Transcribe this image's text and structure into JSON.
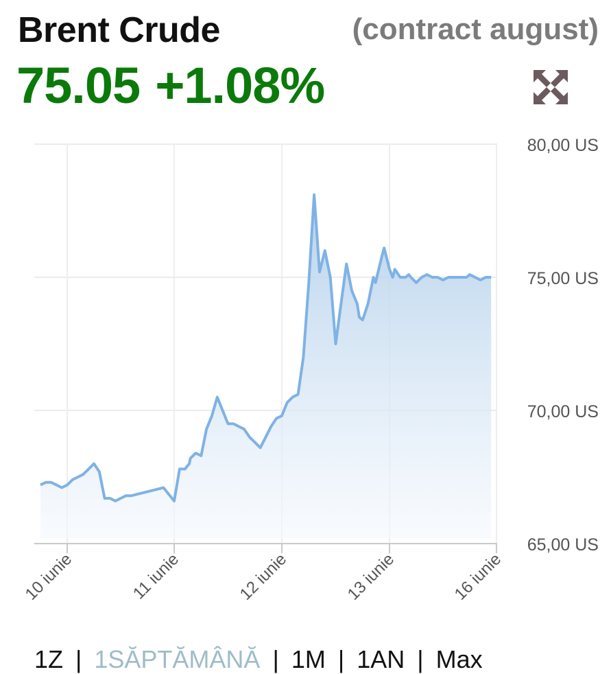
{
  "header": {
    "title": "Brent Crude",
    "contract": "(contract august)",
    "price": "75.05",
    "change": "+1.08%",
    "expand_icon": "expand-arrows-icon"
  },
  "range_selector": {
    "options": [
      "1Z",
      "1SĂPTĂMÂNĂ",
      "1M",
      "1AN",
      "Max"
    ],
    "separator": "|",
    "active": "1SĂPTĂMÂNĂ"
  },
  "colors": {
    "line": "#7fb2e5",
    "area_top": "#aecde9",
    "area_bottom": "#f4f8fd",
    "price": "#0b7a0b",
    "active_range": "#9fbcc8"
  },
  "chart_data": {
    "type": "area",
    "ylim": [
      65,
      80
    ],
    "y_ticks": [
      65,
      70,
      75,
      80
    ],
    "y_tick_labels": [
      "65,00 US",
      "70,00 US",
      "75,00 US",
      "80,00 US"
    ],
    "x_ticks": [
      0,
      1,
      2,
      3,
      4
    ],
    "x_tick_labels": [
      "10 iunie",
      "11 iunie",
      "12 iunie",
      "13 iunie",
      "16 iunie"
    ],
    "xlim": [
      -0.31,
      4.0
    ],
    "grid": true,
    "series": [
      {
        "x": [
          -0.25,
          -0.2,
          -0.15,
          -0.1,
          -0.05,
          0.0,
          0.05,
          0.1,
          0.15,
          0.2,
          0.25,
          0.3,
          0.35,
          0.4,
          0.45,
          0.5,
          0.55,
          0.6,
          0.7,
          0.8,
          0.9,
          1.0,
          1.05,
          1.1,
          1.14,
          1.15,
          1.2,
          1.25,
          1.3,
          1.35,
          1.4,
          1.45,
          1.5,
          1.55,
          1.6,
          1.65,
          1.7,
          1.75,
          1.8,
          1.85,
          1.9,
          1.95,
          2.0,
          2.05,
          2.1,
          2.15,
          2.2,
          2.25,
          2.3,
          2.35,
          2.4,
          2.45,
          2.5,
          2.55,
          2.6,
          2.65,
          2.7,
          2.72,
          2.75,
          2.8,
          2.85,
          2.87,
          2.9,
          2.93,
          2.95,
          3.0,
          3.03,
          3.05,
          3.1,
          3.15,
          3.18,
          3.2,
          3.25,
          3.3,
          3.35,
          3.4,
          3.45,
          3.5,
          3.55,
          3.6,
          3.65,
          3.7,
          3.72,
          3.75,
          3.8,
          3.85,
          3.9,
          3.95
        ],
        "y": [
          67.2,
          67.3,
          67.3,
          67.2,
          67.1,
          67.2,
          67.4,
          67.5,
          67.6,
          67.8,
          68.0,
          67.7,
          66.7,
          66.7,
          66.6,
          66.7,
          66.8,
          66.8,
          66.9,
          67.0,
          67.1,
          66.6,
          67.8,
          67.8,
          68.0,
          68.2,
          68.4,
          68.3,
          69.3,
          69.8,
          70.5,
          70.0,
          69.5,
          69.5,
          69.4,
          69.3,
          69.0,
          68.8,
          68.6,
          69.0,
          69.4,
          69.7,
          69.8,
          70.3,
          70.5,
          70.6,
          72.0,
          74.8,
          78.1,
          75.2,
          76.0,
          75.0,
          72.5,
          74.0,
          75.5,
          74.5,
          74.0,
          73.5,
          73.4,
          74.0,
          75.0,
          74.8,
          75.3,
          75.8,
          76.1,
          75.3,
          75.0,
          75.3,
          75.0,
          75.0,
          75.1,
          75.0,
          74.8,
          75.0,
          75.1,
          75.0,
          75.0,
          74.9,
          75.0,
          75.0,
          75.0,
          75.0,
          75.0,
          75.1,
          75.0,
          74.9,
          75.0,
          75.0
        ]
      }
    ]
  }
}
